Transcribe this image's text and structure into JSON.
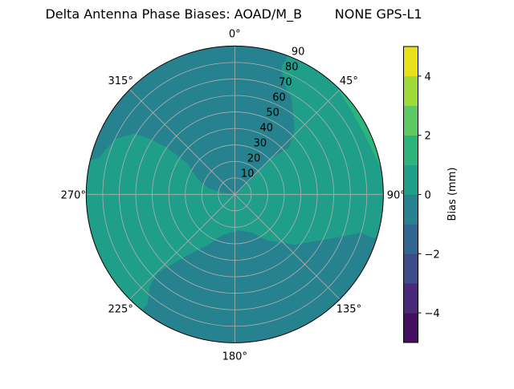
{
  "chart_data": {
    "type": "contour",
    "projection": "polar",
    "title": "Delta Antenna Phase Biases: AOAD/M_B        NONE GPS-L1",
    "theta_direction": "clockwise",
    "theta_zero": "north",
    "theta_ticks": [
      "0°",
      "45°",
      "90°",
      "135°",
      "180°",
      "225°",
      "270°",
      "315°"
    ],
    "r_ticks": [
      "10",
      "20",
      "30",
      "40",
      "50",
      "60",
      "70",
      "80",
      "90"
    ],
    "rlim": [
      0,
      90
    ],
    "grid": true,
    "colormap": "viridis",
    "levels": [
      -5,
      -4,
      -3,
      -2,
      -1,
      0,
      1,
      2,
      3,
      4,
      5
    ],
    "level_colors": [
      "#440f5f",
      "#482979",
      "#3c4d8a",
      "#31678e",
      "#26828e",
      "#1f9e89",
      "#2db47c",
      "#5ec962",
      "#9fda3a",
      "#e5e21a"
    ],
    "colorbar": {
      "label": "Bias (mm)",
      "ticks": [
        "−4",
        "−2",
        "0",
        "2",
        "4"
      ],
      "tick_values": [
        -4,
        -2,
        0,
        2,
        4
      ],
      "range": [
        -5,
        5
      ]
    },
    "regions": [
      {
        "band": [
          -1,
          0
        ],
        "description_level": "background, most of the sky"
      },
      {
        "band": [
          0,
          1
        ],
        "extent": "west through zenith to north-east and south-west"
      },
      {
        "band": [
          1,
          2
        ],
        "extent": "thin sliver near horizon, azimuth 45°–90°"
      }
    ]
  }
}
